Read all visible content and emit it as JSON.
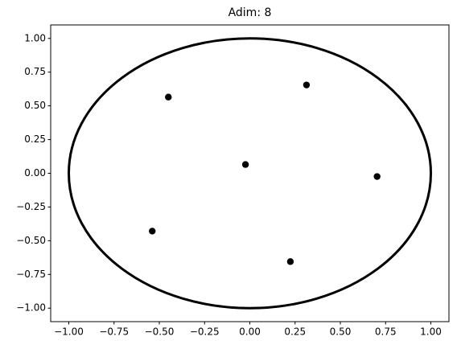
{
  "chart_data": {
    "type": "scatter",
    "title": "Adim: 8",
    "series": [
      {
        "color": "#000000",
        "x": [
          -0.45,
          0.313,
          -0.024,
          0.703,
          -0.539,
          0.224
        ],
        "values": [
          0.565,
          0.655,
          0.065,
          -0.024,
          -0.429,
          -0.655
        ]
      }
    ],
    "circle": {
      "center_x": 0,
      "center_y": 0,
      "radius": 1,
      "color": "#000000"
    },
    "xlim": [
      -1.1,
      1.1
    ],
    "ylim": [
      -1.1,
      1.1
    ],
    "xticks": [
      {
        "value": -1,
        "label": "−1.00"
      },
      {
        "value": -0.75,
        "label": "−0.75"
      },
      {
        "value": -0.5,
        "label": "−0.50"
      },
      {
        "value": -0.25,
        "label": "−0.25"
      },
      {
        "value": 0,
        "label": "0.00"
      },
      {
        "value": 0.25,
        "label": "0.25"
      },
      {
        "value": 0.5,
        "label": "0.50"
      },
      {
        "value": 0.75,
        "label": "0.75"
      },
      {
        "value": 1,
        "label": "1.00"
      }
    ],
    "yticks": [
      {
        "value": -1,
        "label": "−1.00"
      },
      {
        "value": -0.75,
        "label": "−0.75"
      },
      {
        "value": -0.5,
        "label": "−0.50"
      },
      {
        "value": -0.25,
        "label": "−0.25"
      },
      {
        "value": 0,
        "label": "0.00"
      },
      {
        "value": 0.25,
        "label": "0.25"
      },
      {
        "value": 0.5,
        "label": "0.50"
      },
      {
        "value": 0.75,
        "label": "0.75"
      },
      {
        "value": 1,
        "label": "1.00"
      }
    ]
  }
}
